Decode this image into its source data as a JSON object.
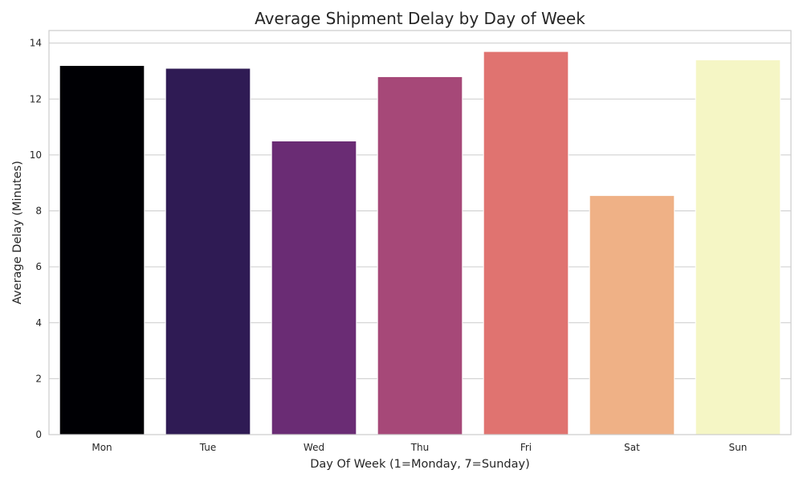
{
  "chart_data": {
    "type": "bar",
    "title": "Average Shipment Delay by Day of Week",
    "xlabel": "Day Of Week (1=Monday, 7=Sunday)",
    "ylabel": "Average Delay (Minutes)",
    "categories": [
      "Mon",
      "Tue",
      "Wed",
      "Thu",
      "Fri",
      "Sat",
      "Sun"
    ],
    "values": [
      13.2,
      13.1,
      10.5,
      12.8,
      13.7,
      8.55,
      13.4
    ],
    "colors": [
      "#000004",
      "#2f1b54",
      "#6a2c74",
      "#a64878",
      "#e07370",
      "#efb186",
      "#f5f6c5"
    ],
    "ylim": [
      0,
      14.45
    ],
    "yticks": [
      0,
      2,
      4,
      6,
      8,
      10,
      12,
      14
    ],
    "ytick_labels": [
      "0",
      "2",
      "4",
      "6",
      "8",
      "10",
      "12",
      "14"
    ],
    "grid": "y",
    "legend": "none"
  }
}
